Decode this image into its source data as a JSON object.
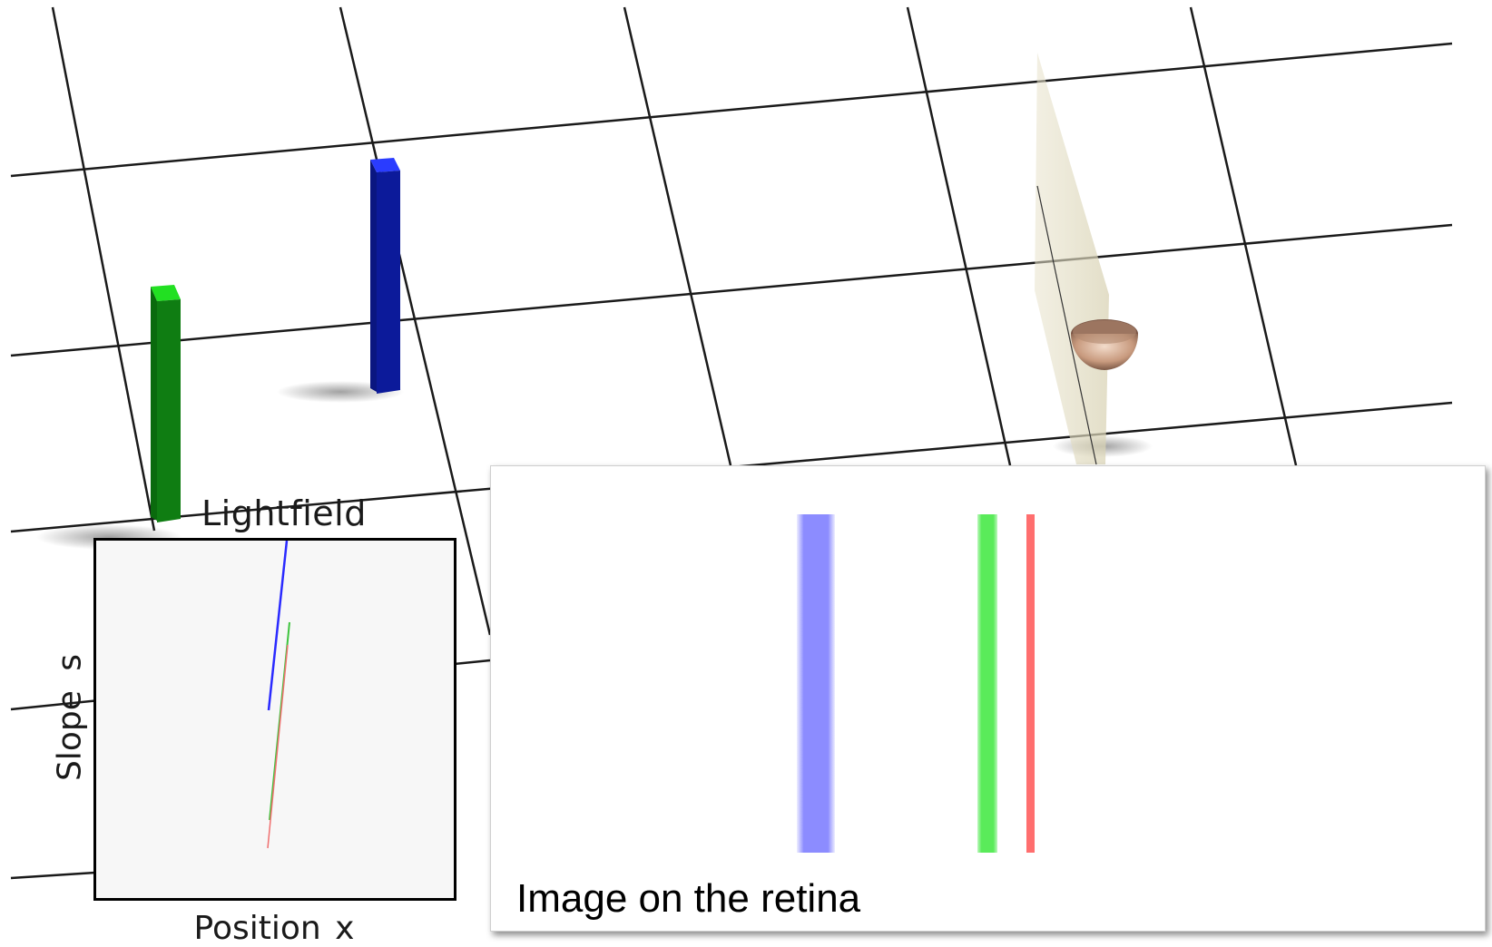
{
  "lightfield": {
    "title": "Lightfield",
    "ylabel": "Slope  s",
    "xlabel": "Position x"
  },
  "retina": {
    "caption": "Image on the retina"
  },
  "colors": {
    "blue_bar": "#0b1a9c",
    "green_bar": "#0f7d12",
    "blue_stripe": "#8c8cff",
    "green_stripe": "#5aeb5a",
    "red_stripe": "#ff6e6e",
    "grid": "#1a1a1a"
  }
}
